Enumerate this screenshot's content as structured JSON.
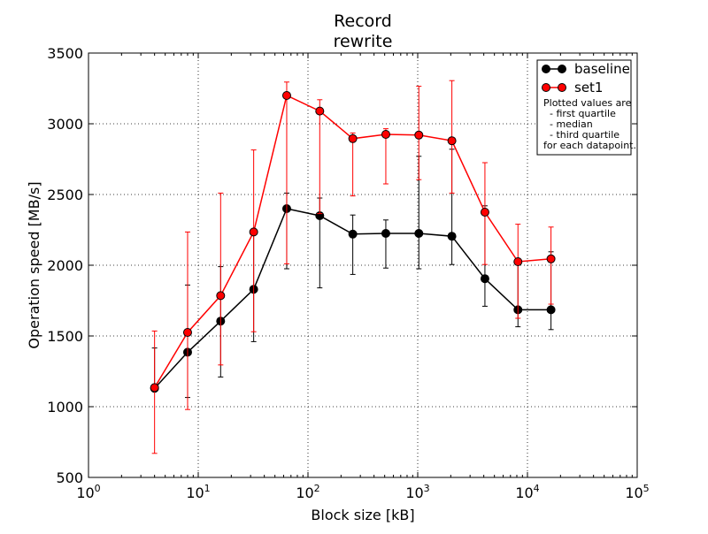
{
  "chart_data": {
    "type": "line",
    "title_lines": [
      "Record",
      "rewrite"
    ],
    "xlabel": "Block size [kB]",
    "ylabel": "Operation speed [MB/s]",
    "x_scale": "log",
    "xlim": [
      1,
      100000
    ],
    "ylim": [
      500,
      3500
    ],
    "grid": true,
    "x_ticks": [
      {
        "value": 1,
        "base": "10",
        "exp": "0"
      },
      {
        "value": 10,
        "base": "10",
        "exp": "1"
      },
      {
        "value": 100,
        "base": "10",
        "exp": "2"
      },
      {
        "value": 1000,
        "base": "10",
        "exp": "3"
      },
      {
        "value": 10000,
        "base": "10",
        "exp": "4"
      },
      {
        "value": 100000,
        "base": "10",
        "exp": "5"
      }
    ],
    "y_ticks": [
      500,
      1000,
      1500,
      2000,
      2500,
      3000,
      3500
    ],
    "x": [
      4,
      8,
      16,
      32,
      64,
      128,
      256,
      512,
      1024,
      2048,
      4096,
      8192,
      16384
    ],
    "series": [
      {
        "name": "baseline",
        "color": "#000000",
        "median": [
          1130,
          1385,
          1605,
          1830,
          2400,
          2350,
          2220,
          2225,
          2225,
          2205,
          1905,
          1685,
          1685
        ],
        "q1": [
          1130,
          1065,
          1210,
          1460,
          1975,
          1840,
          1935,
          1980,
          1975,
          2005,
          1710,
          1565,
          1545
        ],
        "q3": [
          1415,
          1860,
          1990,
          2240,
          2510,
          2475,
          2355,
          2320,
          2770,
          2820,
          2420,
          2030,
          2095
        ]
      },
      {
        "name": "set1",
        "color": "#ff0000",
        "median": [
          1135,
          1525,
          1785,
          2235,
          3200,
          3090,
          2895,
          2925,
          2920,
          2880,
          2375,
          2025,
          2045
        ],
        "q1": [
          670,
          980,
          1295,
          1530,
          2010,
          2365,
          2490,
          2575,
          2605,
          2510,
          2005,
          1625,
          1725
        ],
        "q3": [
          1535,
          2235,
          2510,
          2815,
          3295,
          3170,
          2935,
          2965,
          3265,
          3305,
          2725,
          2290,
          2270
        ]
      }
    ],
    "legend": {
      "position": "top-right",
      "note_lines": [
        "Plotted values are",
        "  - first quartile",
        "  - median",
        "  - third quartile",
        "for each datapoint."
      ]
    }
  }
}
